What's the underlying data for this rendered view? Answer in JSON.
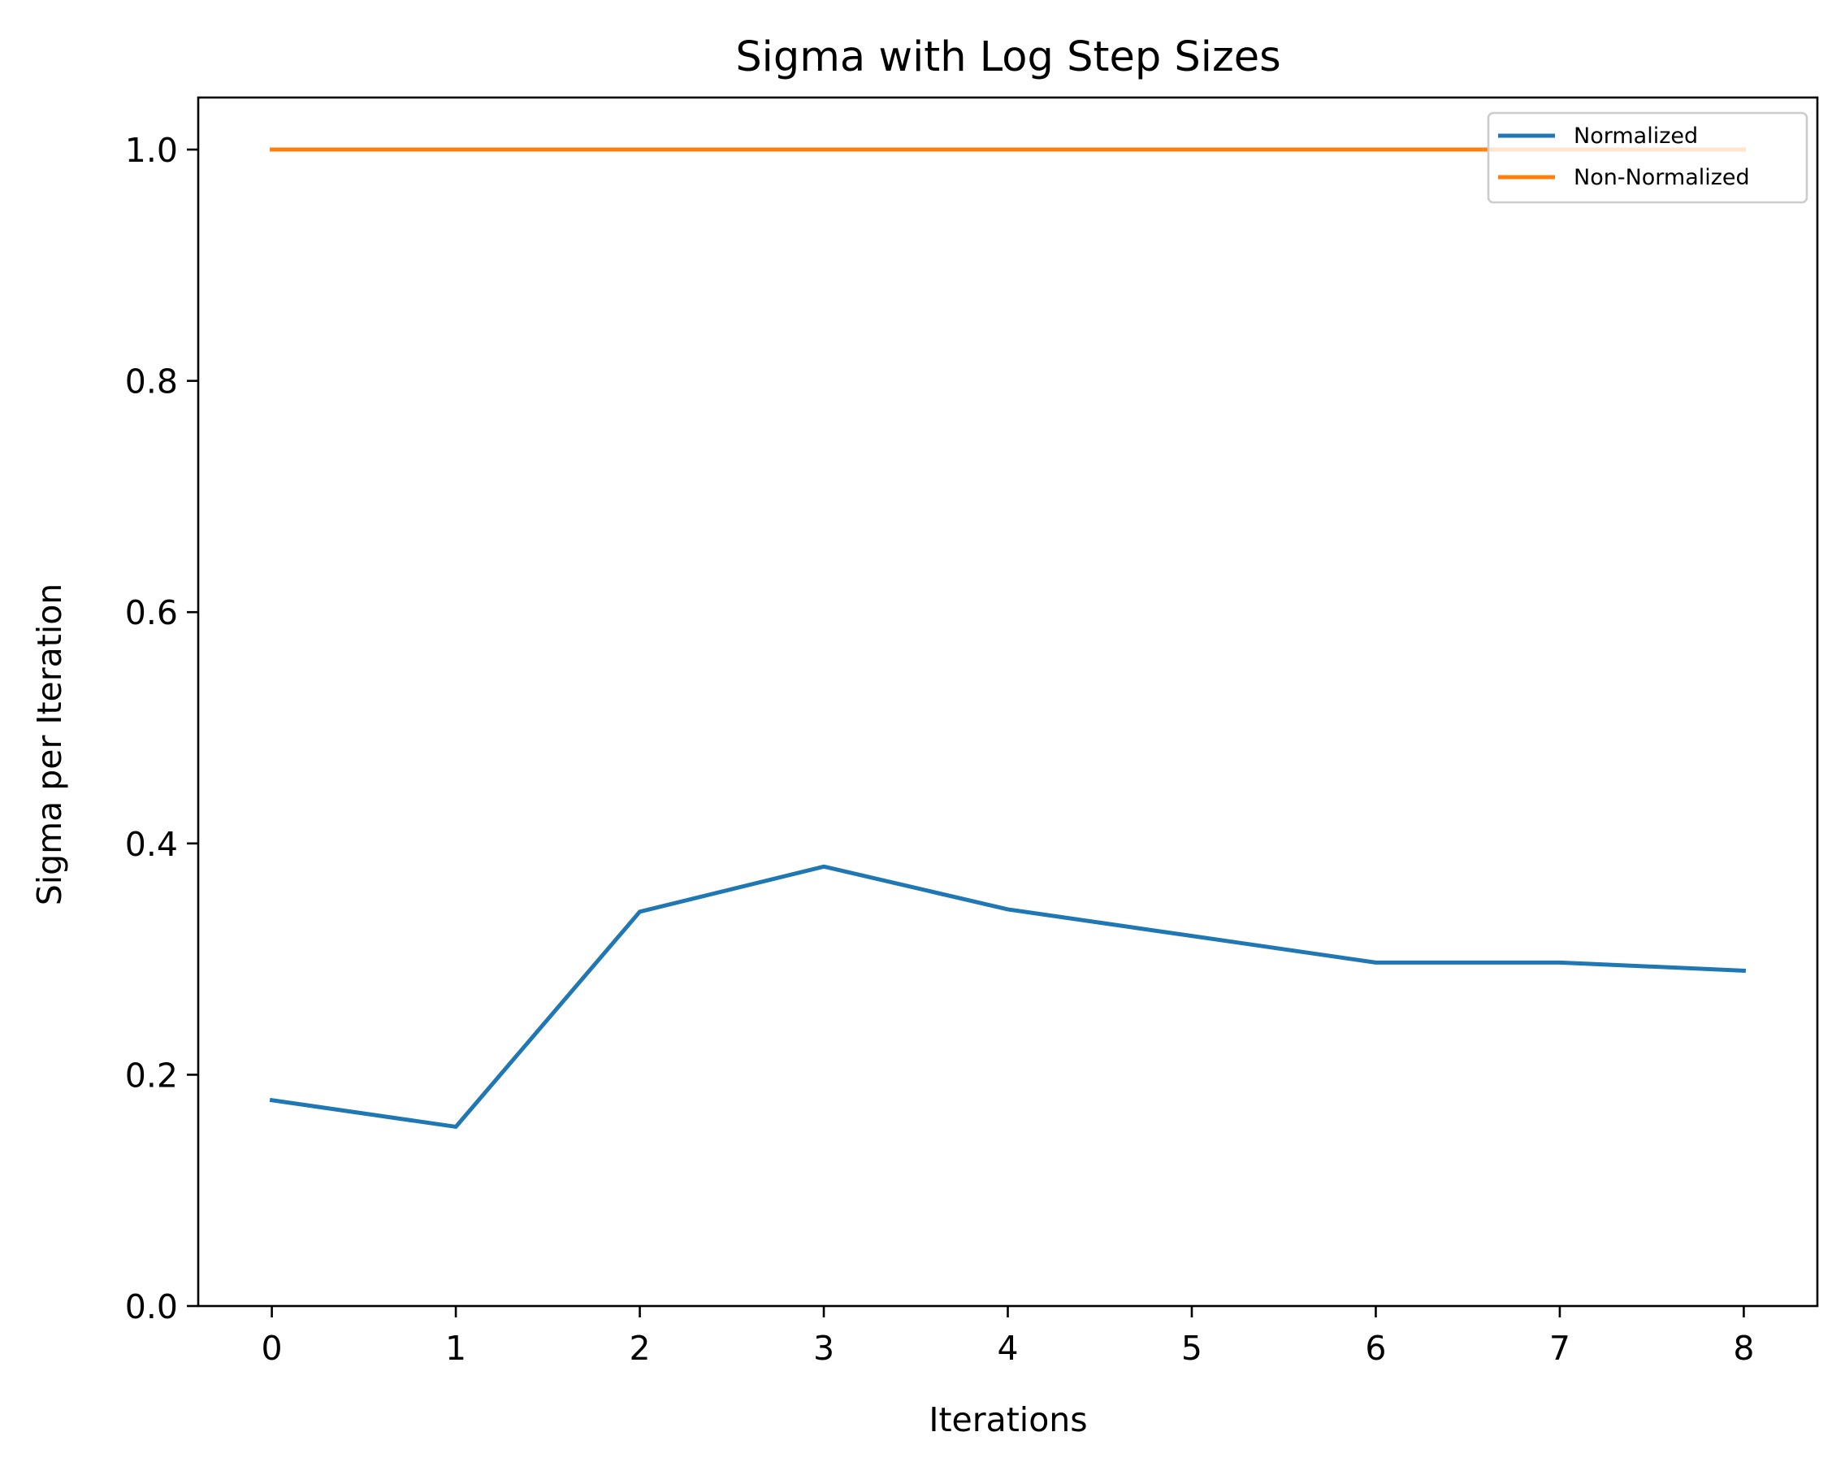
{
  "chart_data": {
    "type": "line",
    "title": "Sigma with Log Step Sizes",
    "xlabel": "Iterations",
    "ylabel": "Sigma per Iteration",
    "x": [
      0,
      1,
      2,
      3,
      4,
      5,
      6,
      7,
      8
    ],
    "xlim": [
      -0.4,
      8.4
    ],
    "ylim": [
      0.0,
      1.045
    ],
    "xticks": [
      0,
      1,
      2,
      3,
      4,
      5,
      6,
      7,
      8
    ],
    "yticks": [
      0.0,
      0.2,
      0.4,
      0.6,
      0.8,
      1.0
    ],
    "ytick_labels": [
      "0.0",
      "0.2",
      "0.4",
      "0.6",
      "0.8",
      "1.0"
    ],
    "grid": false,
    "legend_position": "top-right",
    "series": [
      {
        "name": "Normalized",
        "color": "#1f77b4",
        "values": [
          0.178,
          0.155,
          0.341,
          0.38,
          0.343,
          0.32,
          0.297,
          0.297,
          0.29
        ]
      },
      {
        "name": "Non-Normalized",
        "color": "#ff7f0e",
        "values": [
          1.0,
          1.0,
          1.0,
          1.0,
          1.0,
          1.0,
          1.0,
          1.0,
          1.0
        ]
      }
    ]
  }
}
